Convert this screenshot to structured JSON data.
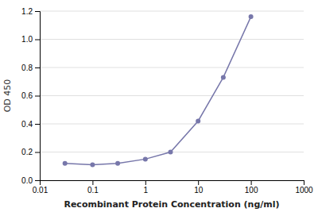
{
  "chart_data": {
    "type": "line",
    "xlabel": "Recombinant Protein Concentration (ng/ml)",
    "ylabel": "OD 450",
    "x": [
      0.03,
      0.1,
      0.3,
      1.0,
      3.0,
      10.0,
      30.0,
      100.0
    ],
    "values": [
      0.12,
      0.11,
      0.12,
      0.15,
      0.2,
      0.42,
      0.73,
      1.16
    ],
    "color": "#7777aa",
    "marker": "circle",
    "log": "x",
    "xlim": [
      0.01,
      1000
    ],
    "ylim": [
      0,
      1.2
    ],
    "xticks": [
      0.01,
      0.1,
      1,
      10,
      100,
      1000
    ],
    "yticks": [
      {
        "value": 0,
        "label": "0.0"
      },
      0.2,
      0.4,
      0.6,
      0.8,
      {
        "value": 1.0,
        "label": "1.0"
      },
      1.2
    ],
    "grid": "y"
  }
}
